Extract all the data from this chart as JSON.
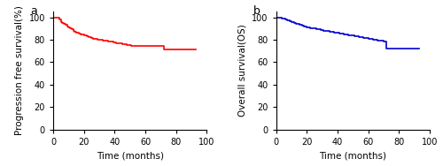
{
  "panel_a": {
    "label": "a",
    "color": "#FF0000",
    "xlabel": "Time (months)",
    "ylabel": "Progression free survival(%)",
    "xlim": [
      0,
      100
    ],
    "ylim": [
      0,
      105
    ],
    "yticks": [
      0,
      20,
      40,
      60,
      80,
      100
    ],
    "xticks": [
      0,
      20,
      40,
      60,
      80,
      100
    ],
    "steps_x": [
      0,
      2,
      4,
      5,
      6,
      7,
      8,
      9,
      10,
      11,
      12,
      13,
      14,
      15,
      16,
      17,
      18,
      19,
      20,
      21,
      22,
      23,
      24,
      25,
      26,
      27,
      28,
      29,
      30,
      31,
      32,
      33,
      34,
      35,
      36,
      37,
      38,
      39,
      40,
      41,
      42,
      43,
      44,
      45,
      46,
      47,
      48,
      49,
      50,
      51,
      52,
      53,
      54,
      55,
      56,
      57,
      58,
      59,
      60,
      61,
      62,
      63,
      64,
      65,
      66,
      67,
      68,
      69,
      70,
      71,
      72,
      73,
      74,
      75,
      76,
      77,
      78,
      79,
      80,
      81,
      82,
      83,
      84,
      85,
      86,
      87,
      88,
      89,
      90,
      91,
      92,
      93
    ],
    "steps_y": [
      100,
      100,
      98,
      96,
      95,
      94,
      93,
      92,
      91,
      90,
      89,
      88,
      87,
      86.5,
      86,
      85.5,
      85,
      84.5,
      84,
      83.5,
      83,
      82.5,
      82,
      81.5,
      81,
      80.8,
      80.5,
      80.2,
      80,
      79.8,
      79.5,
      79.2,
      79,
      78.8,
      78.5,
      78.2,
      78,
      77.8,
      77.5,
      77.2,
      77,
      76.8,
      76.5,
      76.2,
      76,
      75.8,
      75.5,
      75.2,
      75,
      74.8,
      74.5,
      74.5,
      74.5,
      74.5,
      74.5,
      74.5,
      74.5,
      74.5,
      74.5,
      74.5,
      74.5,
      74.5,
      74.5,
      74.5,
      74.5,
      74.5,
      74.5,
      74.5,
      74.5,
      74.5,
      71,
      71,
      71,
      71,
      71,
      71,
      71,
      71,
      71,
      71,
      71,
      71,
      71,
      71,
      71,
      71,
      71,
      71,
      71,
      71,
      71,
      71
    ]
  },
  "panel_b": {
    "label": "b",
    "color": "#0000CC",
    "xlabel": "Time (months)",
    "ylabel": "Overall survival(OS)",
    "xlim": [
      0,
      100
    ],
    "ylim": [
      0,
      105
    ],
    "yticks": [
      0,
      20,
      40,
      60,
      80,
      100
    ],
    "xticks": [
      0,
      20,
      40,
      60,
      80,
      100
    ],
    "steps_x": [
      0,
      2,
      3,
      4,
      5,
      6,
      7,
      8,
      9,
      10,
      11,
      12,
      13,
      14,
      15,
      16,
      17,
      18,
      19,
      20,
      21,
      22,
      23,
      24,
      25,
      26,
      27,
      28,
      29,
      30,
      31,
      32,
      33,
      34,
      35,
      36,
      37,
      38,
      39,
      40,
      41,
      42,
      43,
      44,
      45,
      46,
      47,
      48,
      49,
      50,
      51,
      52,
      53,
      54,
      55,
      56,
      57,
      58,
      59,
      60,
      61,
      62,
      63,
      64,
      65,
      66,
      67,
      68,
      69,
      70,
      71,
      72,
      73,
      74,
      75,
      76,
      77,
      78,
      79,
      80,
      81,
      82,
      83,
      84,
      85,
      86,
      87,
      88,
      89,
      90,
      91,
      92,
      93
    ],
    "steps_y": [
      100,
      100,
      99.5,
      99,
      98.5,
      98,
      97.5,
      97,
      96.5,
      96,
      95.5,
      95,
      94.5,
      94,
      93.5,
      93,
      92.5,
      92,
      91.5,
      91,
      90.8,
      90.5,
      90.2,
      90,
      89.8,
      89.5,
      89.2,
      89,
      88.8,
      88.5,
      88.2,
      88,
      87.8,
      87.5,
      87.2,
      87,
      86.8,
      86.5,
      86.2,
      86,
      85.8,
      85.5,
      85.2,
      85,
      84.8,
      84.5,
      84.2,
      84,
      83.8,
      83.5,
      83.2,
      83,
      82.8,
      82.5,
      82.2,
      82,
      81.8,
      81.5,
      81.2,
      81,
      80.8,
      80.5,
      80.2,
      80,
      79.8,
      79.5,
      79.2,
      79,
      78.8,
      78.5,
      78.2,
      72,
      72,
      72,
      72,
      72,
      72,
      72,
      72,
      72,
      72,
      72,
      72,
      72,
      72,
      72,
      72,
      72,
      72,
      72,
      72,
      72,
      72
    ]
  },
  "figure": {
    "figsize": [
      5.0,
      1.88
    ],
    "dpi": 100,
    "linewidth": 1.2,
    "tick_fontsize": 7,
    "label_fontsize": 7.5,
    "panel_label_fontsize": 9,
    "spine_linewidth": 0.8
  }
}
